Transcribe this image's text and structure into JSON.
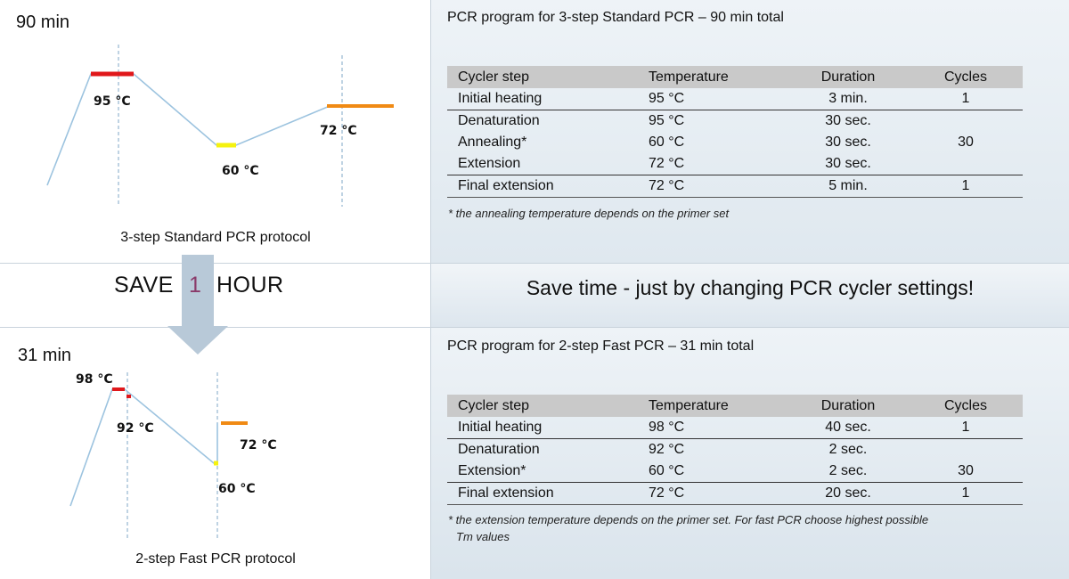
{
  "top": {
    "total_time": "90 min",
    "protocol_label": "3-step Standard PCR protocol",
    "temp_labels": [
      "95 °C",
      "60 °C",
      "72 °C"
    ],
    "program_title": "PCR program for 3-step Standard PCR – 90 min total",
    "table": {
      "headers": [
        "Cycler step",
        "Temperature",
        "Duration",
        "Cycles"
      ],
      "rows": [
        [
          "Initial heating",
          "95 °C",
          "3 min.",
          "1"
        ],
        [
          "Denaturation",
          "95 °C",
          "30 sec.",
          ""
        ],
        [
          "Annealing*",
          "60 °C",
          "30 sec.",
          "30"
        ],
        [
          "Extension",
          "72 °C",
          "30 sec.",
          ""
        ],
        [
          "Final extension",
          "72 °C",
          "5 min.",
          "1"
        ]
      ]
    },
    "footnote": "* the annealing temperature depends on the primer set"
  },
  "middle": {
    "save_prefix": "SAVE",
    "save_number": "1",
    "save_suffix": "HOUR",
    "headline": "Save time - just by changing PCR cycler settings!"
  },
  "bottom": {
    "total_time": "31 min",
    "protocol_label": "2-step Fast PCR protocol",
    "temp_labels": [
      "98 °C",
      "92 °C",
      "72 °C",
      "60 °C"
    ],
    "program_title": "PCR program for 2-step Fast PCR – 31 min total",
    "table": {
      "headers": [
        "Cycler step",
        "Temperature",
        "Duration",
        "Cycles"
      ],
      "rows": [
        [
          "Initial heating",
          "98 °C",
          "40 sec.",
          "1"
        ],
        [
          "Denaturation",
          "92 °C",
          "2 sec.",
          ""
        ],
        [
          "Extension*",
          "60 °C",
          "2 sec.",
          "30"
        ],
        [
          "Final extension",
          "72 °C",
          "20 sec.",
          "1"
        ]
      ]
    },
    "footnote_line1": "* the extension temperature depends on the primer set. For fast PCR choose highest possible",
    "footnote_line2": "Tm values"
  },
  "colors": {
    "hot": "#e0181b",
    "anneal": "#f5f20f",
    "extend": "#f08a14",
    "ramp": "#9cc3df",
    "guide": "#7fa7c7",
    "arrow": "#b8c9d8"
  }
}
